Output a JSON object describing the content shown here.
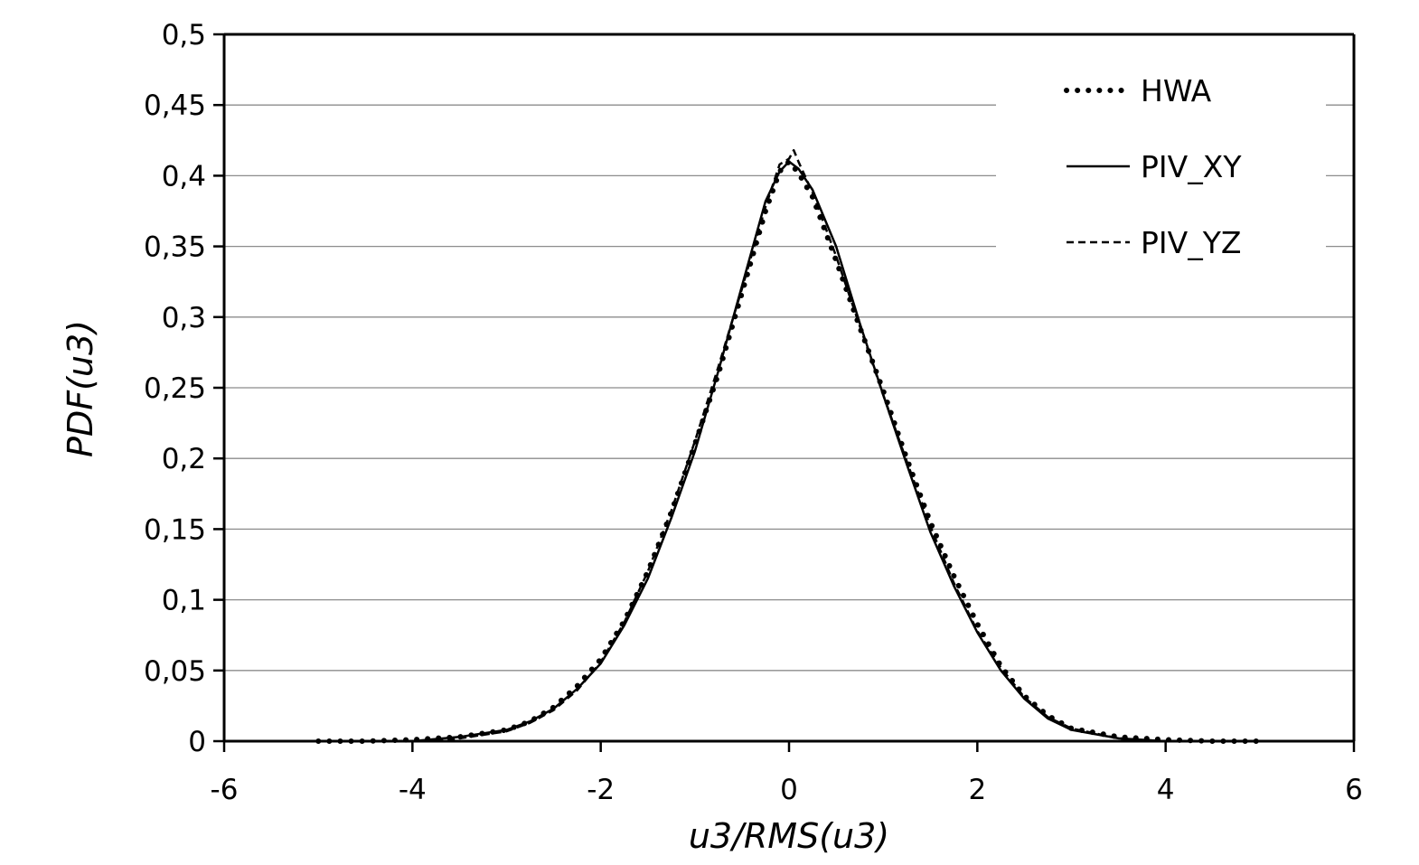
{
  "chart_data": {
    "type": "line",
    "xlabel": "u3/RMS(u3)",
    "ylabel": "PDF(u3)",
    "xlim": [
      -6,
      6
    ],
    "ylim": [
      0,
      0.5
    ],
    "x_ticks": [
      -6,
      -4,
      -2,
      0,
      2,
      4,
      6
    ],
    "x_tick_labels": [
      "-6",
      "-4",
      "-2",
      "0",
      "2",
      "4",
      "6"
    ],
    "y_ticks": [
      0,
      0.05,
      0.1,
      0.15,
      0.2,
      0.25,
      0.3,
      0.35,
      0.4,
      0.45,
      0.5
    ],
    "y_tick_labels": [
      "0",
      "0,05",
      "0,1",
      "0,15",
      "0,2",
      "0,25",
      "0,3",
      "0,35",
      "0,4",
      "0,45",
      "0,5"
    ],
    "grid": "horizontal",
    "legend_position": "top-right",
    "series": [
      {
        "name": "HWA",
        "style": "dotted",
        "color": "#000000",
        "x": [
          -5,
          -4.5,
          -4,
          -3.5,
          -3,
          -2.75,
          -2.5,
          -2.25,
          -2,
          -1.75,
          -1.5,
          -1.25,
          -1,
          -0.75,
          -0.5,
          -0.25,
          -0.1,
          0,
          0.1,
          0.25,
          0.5,
          0.75,
          1,
          1.25,
          1.5,
          1.75,
          2,
          2.25,
          2.5,
          2.75,
          3,
          3.5,
          4,
          4.5,
          5
        ],
        "y": [
          0.0,
          0.0,
          0.001,
          0.003,
          0.008,
          0.014,
          0.024,
          0.039,
          0.058,
          0.085,
          0.12,
          0.162,
          0.21,
          0.26,
          0.317,
          0.375,
          0.403,
          0.41,
          0.402,
          0.385,
          0.34,
          0.293,
          0.248,
          0.2,
          0.155,
          0.117,
          0.083,
          0.053,
          0.032,
          0.018,
          0.009,
          0.003,
          0.001,
          0.0,
          0.0
        ]
      },
      {
        "name": "PIV_XY",
        "style": "solid",
        "color": "#000000",
        "x": [
          -4,
          -3.5,
          -3,
          -2.75,
          -2.5,
          -2.25,
          -2,
          -1.75,
          -1.5,
          -1.25,
          -1,
          -0.75,
          -0.5,
          -0.25,
          -0.1,
          0,
          0.1,
          0.25,
          0.5,
          0.75,
          1,
          1.25,
          1.5,
          1.75,
          2,
          2.25,
          2.5,
          2.75,
          3,
          3.5,
          4
        ],
        "y": [
          0.0,
          0.003,
          0.008,
          0.014,
          0.023,
          0.037,
          0.055,
          0.082,
          0.115,
          0.158,
          0.205,
          0.262,
          0.322,
          0.382,
          0.403,
          0.41,
          0.405,
          0.39,
          0.35,
          0.296,
          0.245,
          0.196,
          0.148,
          0.11,
          0.077,
          0.05,
          0.03,
          0.016,
          0.008,
          0.002,
          0.0
        ]
      },
      {
        "name": "PIV_YZ",
        "style": "dashed",
        "color": "#000000",
        "x": [
          -4,
          -3.5,
          -3,
          -2.75,
          -2.5,
          -2.25,
          -2,
          -1.75,
          -1.5,
          -1.25,
          -1,
          -0.75,
          -0.5,
          -0.25,
          -0.1,
          0,
          0.05,
          0.1,
          0.25,
          0.5,
          0.75,
          1,
          1.25,
          1.5,
          1.75,
          2,
          2.25,
          2.5,
          2.75,
          3,
          3.5,
          4
        ],
        "y": [
          0.0,
          0.002,
          0.007,
          0.013,
          0.022,
          0.036,
          0.056,
          0.084,
          0.12,
          0.163,
          0.212,
          0.265,
          0.32,
          0.378,
          0.408,
          0.412,
          0.418,
          0.41,
          0.388,
          0.343,
          0.294,
          0.245,
          0.198,
          0.152,
          0.112,
          0.078,
          0.052,
          0.031,
          0.017,
          0.009,
          0.002,
          0.0
        ]
      }
    ]
  }
}
